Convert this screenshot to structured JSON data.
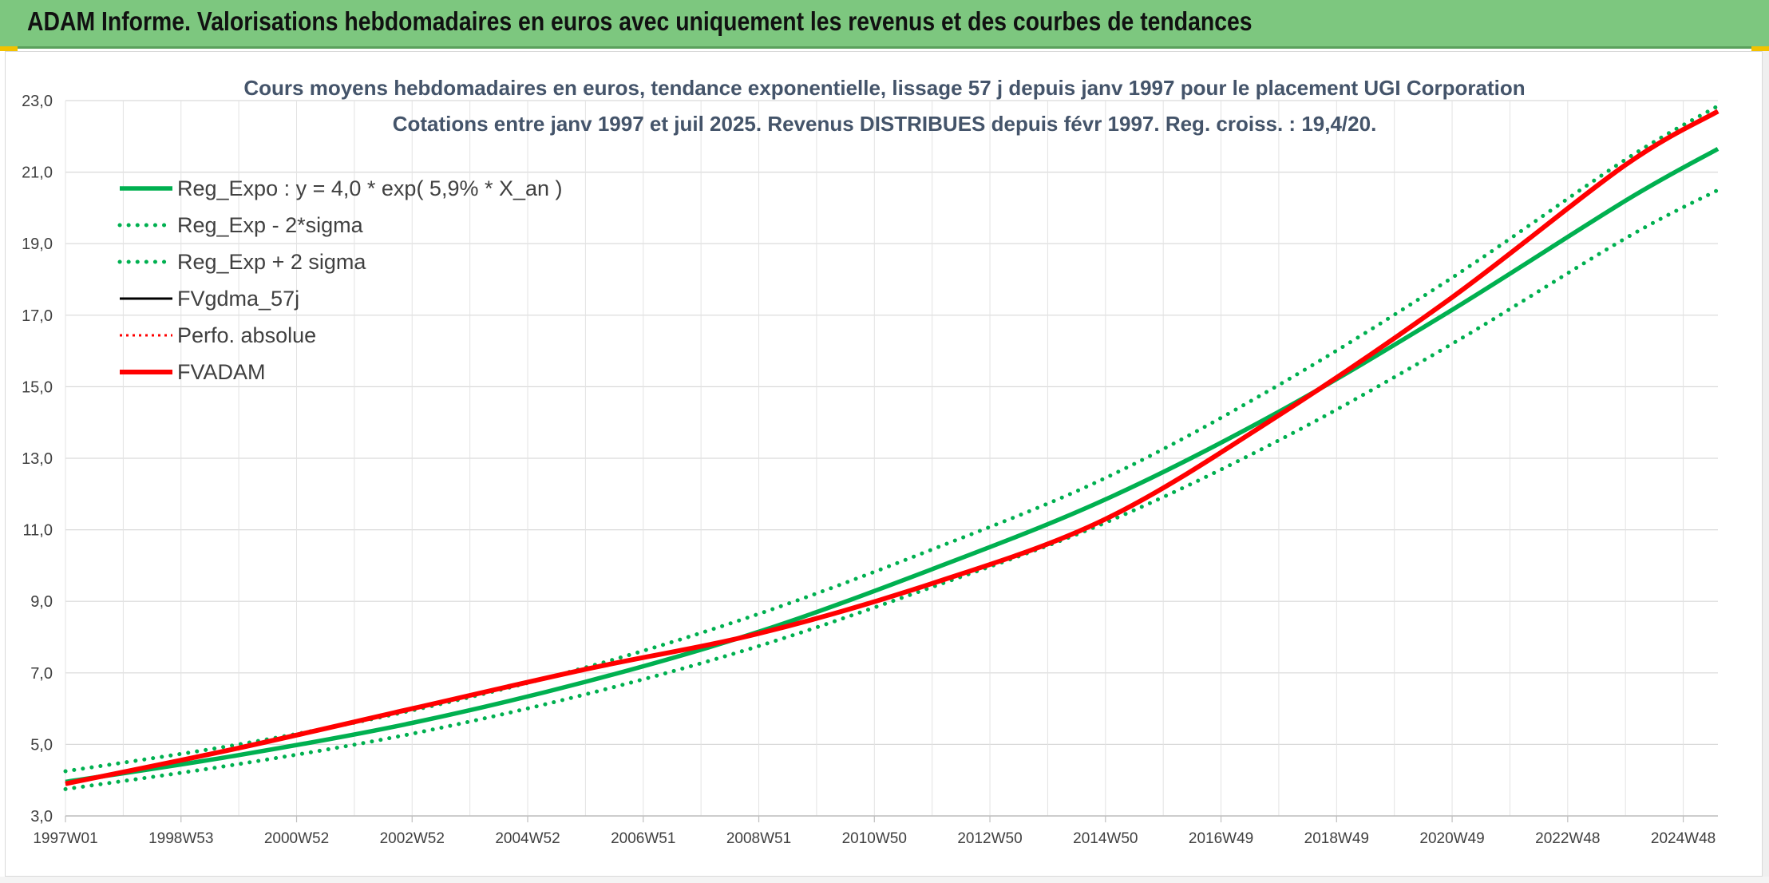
{
  "header": {
    "title": "ADAM Informe. Valorisations hebdomadaires en euros avec uniquement les revenus et des courbes de tendances"
  },
  "chart_data": {
    "type": "line",
    "title": "Cours moyens hebdomadaires en euros, tendance exponentielle, lissage 57 j depuis janv 1997 pour le placement UGI Corporation",
    "subtitle": "Cotations entre janv 1997 et juil 2025. Revenus DISTRIBUES depuis févr 1997. Reg. croiss. : 19,4/20.",
    "xlabel": "",
    "ylabel": "",
    "ylim": [
      3.0,
      23.0
    ],
    "y_ticks": [
      "3,0",
      "5,0",
      "7,0",
      "9,0",
      "11,0",
      "13,0",
      "15,0",
      "17,0",
      "19,0",
      "21,0",
      "23,0"
    ],
    "x_range": [
      1997.0,
      2025.6
    ],
    "x_ticks": [
      {
        "label": "1997W01",
        "x": 1997.0
      },
      {
        "label": "1998W53",
        "x": 1999.0
      },
      {
        "label": "2000W52",
        "x": 2001.0
      },
      {
        "label": "2002W52",
        "x": 2003.0
      },
      {
        "label": "2004W52",
        "x": 2005.0
      },
      {
        "label": "2006W51",
        "x": 2007.0
      },
      {
        "label": "2008W51",
        "x": 2009.0
      },
      {
        "label": "2010W50",
        "x": 2011.0
      },
      {
        "label": "2012W50",
        "x": 2013.0
      },
      {
        "label": "2014W50",
        "x": 2015.0
      },
      {
        "label": "2016W49",
        "x": 2017.0
      },
      {
        "label": "2018W49",
        "x": 2019.0
      },
      {
        "label": "2020W49",
        "x": 2021.0
      },
      {
        "label": "2022W48",
        "x": 2023.0
      },
      {
        "label": "2024W48",
        "x": 2025.0
      }
    ],
    "grid": true,
    "legend_position": "top-left",
    "series": [
      {
        "name": "Reg_Expo : y = 4,0 * exp( 5,9% *  X_an )",
        "color": "#00b050",
        "style": "solid",
        "x": [
          1997,
          2000,
          2003,
          2006,
          2009,
          2012,
          2015,
          2018,
          2021,
          2024,
          2025.6
        ],
        "values": [
          3.95,
          4.7,
          5.6,
          6.75,
          8.15,
          9.9,
          11.85,
          14.3,
          17.15,
          20.2,
          21.65
        ]
      },
      {
        "name": "Reg_Exp - 2*sigma",
        "color": "#00b050",
        "style": "dotted",
        "x": [
          1997,
          2000,
          2003,
          2006,
          2009,
          2012,
          2015,
          2018,
          2021,
          2024,
          2025.6
        ],
        "values": [
          3.75,
          4.45,
          5.3,
          6.4,
          7.75,
          9.4,
          11.2,
          13.5,
          16.2,
          19.15,
          20.5
        ]
      },
      {
        "name": "Reg_Exp + 2 sigma",
        "color": "#00b050",
        "style": "dotted",
        "x": [
          1997,
          2000,
          2003,
          2006,
          2009,
          2012,
          2015,
          2018,
          2021,
          2024,
          2025.6
        ],
        "values": [
          4.25,
          5.0,
          5.95,
          7.15,
          8.65,
          10.45,
          12.45,
          15.05,
          18.05,
          21.35,
          22.85
        ]
      },
      {
        "name": "FVgdma_57j",
        "color": "#000000",
        "style": "solid",
        "x": [
          1997,
          2000,
          2003,
          2006,
          2009,
          2012,
          2015,
          2018,
          2021,
          2024,
          2025.6
        ],
        "values": [
          3.9,
          4.9,
          6.0,
          7.1,
          8.1,
          9.5,
          11.3,
          14.2,
          17.5,
          21.2,
          22.7
        ]
      },
      {
        "name": "Perfo. absolue",
        "color": "#ff0000",
        "style": "dotted",
        "x": [
          1997,
          2000,
          2003,
          2006,
          2009,
          2012,
          2015,
          2018,
          2021,
          2024,
          2025.6
        ],
        "values": [
          3.9,
          4.9,
          6.0,
          7.1,
          8.1,
          9.5,
          11.3,
          14.2,
          17.5,
          21.2,
          22.7
        ]
      },
      {
        "name": "FVADAM",
        "color": "#ff0000",
        "style": "solid",
        "x": [
          1997,
          2000,
          2003,
          2006,
          2009,
          2012,
          2015,
          2018,
          2021,
          2024,
          2025.6
        ],
        "values": [
          3.9,
          4.9,
          6.0,
          7.1,
          8.1,
          9.5,
          11.3,
          14.2,
          17.5,
          21.2,
          22.7
        ]
      }
    ]
  }
}
